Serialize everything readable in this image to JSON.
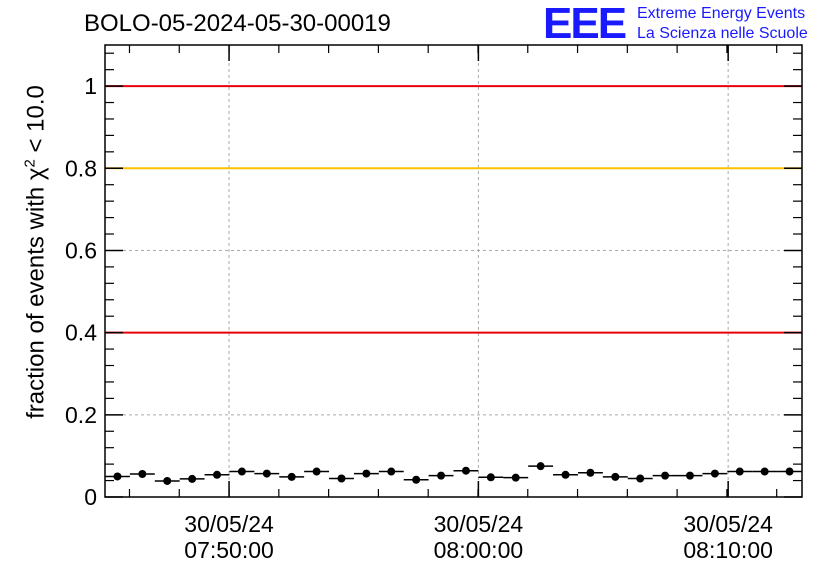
{
  "header": {
    "title": "BOLO-05-2024-05-30-00019",
    "logo_text": "EEE",
    "logo_line1": "Extreme Energy Events",
    "logo_line2": "La Scienza nelle Scuole"
  },
  "chart_data": {
    "type": "scatter",
    "ylabel_prefix": "fraction of events with ",
    "ylabel_symbol": "χ",
    "ylabel_sup": "2",
    "ylabel_suffix": " < 10.0",
    "xlim": [
      "07:45:00",
      "08:13:00"
    ],
    "ylim": [
      0,
      1.1
    ],
    "yticks": [
      0,
      0.2,
      0.4,
      0.6,
      0.8,
      1
    ],
    "ytick_labels": [
      "0",
      "0.2",
      "0.4",
      "0.6",
      "0.8",
      "1"
    ],
    "xticks": [
      {
        "time": "07:49:59",
        "date": "30/05/24",
        "label": "07:50:00"
      },
      {
        "time": "08:00:00",
        "date": "30/05/24",
        "label": "08:00:00"
      },
      {
        "time": "08:10:02",
        "date": "30/05/24",
        "label": "08:10:00"
      }
    ],
    "grid": true,
    "reference_lines": [
      {
        "y": 1.0,
        "color": "#e8000b"
      },
      {
        "y": 0.8,
        "color": "#ffc000"
      },
      {
        "y": 0.4,
        "color": "#e8000b"
      }
    ],
    "bin_width_minutes": 1,
    "x": [
      "07:45:30",
      "07:46:30",
      "07:47:30",
      "07:48:30",
      "07:49:30",
      "07:50:30",
      "07:51:30",
      "07:52:30",
      "07:53:30",
      "07:54:30",
      "07:55:30",
      "07:56:30",
      "07:57:30",
      "07:58:30",
      "07:59:30",
      "08:00:30",
      "08:01:30",
      "08:02:30",
      "08:03:30",
      "08:04:30",
      "08:05:30",
      "08:06:30",
      "08:07:30",
      "08:08:30",
      "08:09:30",
      "08:10:30",
      "08:11:30",
      "08:12:30"
    ],
    "y": [
      0.05,
      0.056,
      0.039,
      0.044,
      0.054,
      0.062,
      0.057,
      0.049,
      0.062,
      0.045,
      0.057,
      0.062,
      0.042,
      0.052,
      0.064,
      0.048,
      0.047,
      0.075,
      0.054,
      0.059,
      0.049,
      0.045,
      0.052,
      0.052,
      0.057,
      0.062,
      0.062,
      0.062
    ],
    "marker_color": "#000000"
  }
}
